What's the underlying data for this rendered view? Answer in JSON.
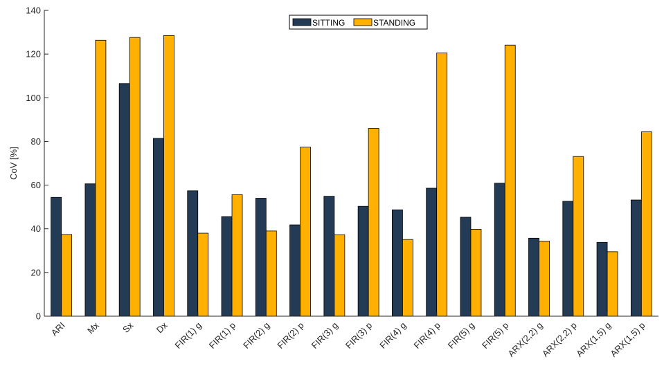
{
  "chart_data": {
    "type": "bar",
    "ylabel": "CoV [%]",
    "xlabel": "",
    "ylim": [
      0,
      140
    ],
    "yticks": [
      0,
      20,
      40,
      60,
      80,
      100,
      120,
      140
    ],
    "grid": false,
    "legend_position": "top-center",
    "categories": [
      "ARI",
      "Mx",
      "Sx",
      "Dx",
      "FIR(1) g",
      "FIR(1) p",
      "FIR(2) g",
      "FIR(2) p",
      "FIR(3) g",
      "FIR(3) p",
      "FIR(4) g",
      "FIR(4) p",
      "FIR(5) g",
      "FIR(5) p",
      "ARX(2,2) g",
      "ARX(2,2) p",
      "ARX(1,5) g",
      "ARX(1,5) p"
    ],
    "series": [
      {
        "name": "SITTING",
        "color": "#243b55",
        "values": [
          54.4,
          60.6,
          106.5,
          81.4,
          57.4,
          45.6,
          54.0,
          41.8,
          54.9,
          50.3,
          48.7,
          58.6,
          45.3,
          60.9,
          35.7,
          52.6,
          33.8,
          53.2
        ]
      },
      {
        "name": "STANDING",
        "color": "#ffb000",
        "values": [
          37.4,
          126.3,
          127.6,
          128.5,
          38.0,
          55.6,
          39.0,
          77.4,
          37.3,
          86.0,
          35.1,
          120.5,
          39.8,
          124.1,
          34.4,
          73.1,
          29.5,
          84.4
        ]
      }
    ]
  }
}
